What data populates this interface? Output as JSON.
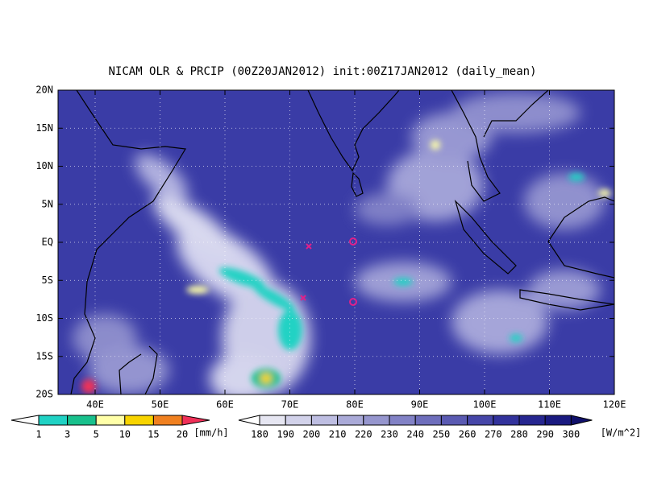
{
  "title": "NICAM OLR & PRCIP (00Z20JAN2012) init:00Z17JAN2012 (daily_mean)",
  "map": {
    "lat_ticks": [
      {
        "value": 20,
        "label": "20N"
      },
      {
        "value": 15,
        "label": "15N"
      },
      {
        "value": 10,
        "label": "10N"
      },
      {
        "value": 5,
        "label": "5N"
      },
      {
        "value": 0,
        "label": "EQ"
      },
      {
        "value": -5,
        "label": "5S"
      },
      {
        "value": -10,
        "label": "10S"
      },
      {
        "value": -15,
        "label": "15S"
      },
      {
        "value": -20,
        "label": "20S"
      }
    ],
    "lon_ticks": [
      {
        "value": 40,
        "label": "40E"
      },
      {
        "value": 50,
        "label": "50E"
      },
      {
        "value": 60,
        "label": "60E"
      },
      {
        "value": 70,
        "label": "70E"
      },
      {
        "value": 80,
        "label": "80E"
      },
      {
        "value": 90,
        "label": "90E"
      },
      {
        "value": 100,
        "label": "100E"
      },
      {
        "value": 110,
        "label": "110E"
      },
      {
        "value": 120,
        "label": "120E"
      }
    ]
  },
  "precip_colorbar": {
    "labels": [
      1,
      3,
      5,
      10,
      15,
      20
    ],
    "unit": "[mm/h]",
    "colors": [
      "#ffffff",
      "#20d2c4",
      "#18c08c",
      "#ffffa8",
      "#f8d400",
      "#f08020",
      "#f03058"
    ]
  },
  "olr_colorbar": {
    "labels": [
      180,
      190,
      200,
      210,
      220,
      230,
      240,
      250,
      260,
      270,
      280,
      290,
      300
    ],
    "unit": "[W/m^2]",
    "colors": [
      "#ffffff",
      "#e6e6f2",
      "#d2d2ea",
      "#bebee2",
      "#aaaad8",
      "#9696ce",
      "#8282c6",
      "#6e6ebc",
      "#5a5ab2",
      "#4646a8",
      "#32329c",
      "#262690",
      "#1a1a80",
      "#10106a"
    ]
  }
}
